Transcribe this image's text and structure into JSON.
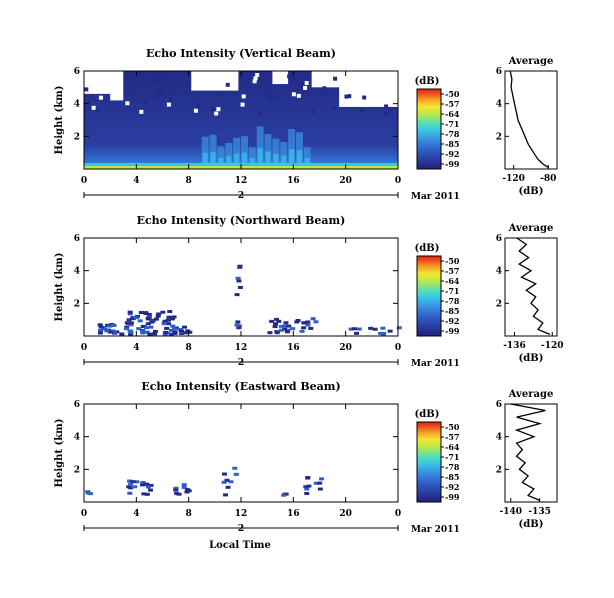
{
  "figure": {
    "x_label": "Local Time",
    "date_tail": "Mar 2011"
  },
  "colorbar": {
    "unit": "(dB)",
    "ticks": [
      "-50",
      "-57",
      "-64",
      "-71",
      "-78",
      "-85",
      "-92",
      "-99"
    ],
    "colors": [
      "#1f1f7a",
      "#2a3ea0",
      "#2f5fc8",
      "#3b8de0",
      "#38c6e8",
      "#5ee0b0",
      "#b6e84a",
      "#f2e633",
      "#f7a628",
      "#f25a1e",
      "#e0201a"
    ]
  },
  "chart_data": [
    {
      "type": "heatmap",
      "title": "Echo Intensity (Vertical Beam)",
      "xlabel": "Local Time",
      "ylabel": "Height (km)",
      "x_ticks": [
        "0",
        "4",
        "8",
        "12",
        "16",
        "20",
        "0"
      ],
      "y_ticks": [
        "2",
        "4",
        "6"
      ],
      "xlim": [
        0,
        24
      ],
      "ylim": [
        0,
        6
      ],
      "day_label": "2",
      "colorbar_range_db": [
        -99,
        -50
      ],
      "profile": {
        "title": "Average",
        "xlabel": "(dB)",
        "x_ticks": [
          "-120",
          "-80"
        ],
        "xlim": [
          -130,
          -70
        ],
        "ylim": [
          0,
          6
        ],
        "y_ticks": [
          "2",
          "4",
          "6"
        ],
        "heights_km": [
          0.1,
          0.3,
          0.6,
          1.0,
          1.5,
          2.0,
          2.5,
          3.0,
          3.5,
          4.0,
          4.5,
          5.0,
          5.5,
          6.0
        ],
        "values_db": [
          -80,
          -86,
          -92,
          -97,
          -103,
          -107,
          -111,
          -115,
          -117,
          -119,
          -121,
          -123,
          -122,
          -124
        ]
      }
    },
    {
      "type": "heatmap",
      "title": "Echo Intensity (Northward Beam)",
      "xlabel": "Local Time",
      "ylabel": "Height (km)",
      "x_ticks": [
        "0",
        "4",
        "8",
        "12",
        "16",
        "20",
        "0"
      ],
      "y_ticks": [
        "2",
        "4",
        "6"
      ],
      "xlim": [
        0,
        24
      ],
      "ylim": [
        0,
        6
      ],
      "day_label": "2",
      "colorbar_range_db": [
        -99,
        -50
      ],
      "profile": {
        "title": "Average",
        "xlabel": "(dB)",
        "x_ticks": [
          "-136",
          "-120"
        ],
        "xlim": [
          -140,
          -118
        ],
        "ylim": [
          0,
          6
        ],
        "y_ticks": [
          "2",
          "4",
          "6"
        ],
        "heights_km": [
          0.1,
          0.4,
          0.8,
          1.2,
          1.6,
          2.0,
          2.4,
          2.8,
          3.2,
          3.6,
          4.0,
          4.4,
          4.8,
          5.2,
          5.6,
          6.0
        ],
        "values_db": [
          -121,
          -126,
          -124,
          -128,
          -126,
          -129,
          -127,
          -131,
          -127,
          -133,
          -129,
          -134,
          -130,
          -134,
          -131,
          -135
        ]
      }
    },
    {
      "type": "heatmap",
      "title": "Echo Intensity (Eastward Beam)",
      "xlabel": "Local Time",
      "ylabel": "Height (km)",
      "x_ticks": [
        "0",
        "4",
        "8",
        "12",
        "16",
        "20",
        "0"
      ],
      "y_ticks": [
        "2",
        "4",
        "6"
      ],
      "xlim": [
        0,
        24
      ],
      "ylim": [
        0,
        6
      ],
      "day_label": "2",
      "colorbar_range_db": [
        -99,
        -50
      ],
      "profile": {
        "title": "Average",
        "xlabel": "(dB)",
        "x_ticks": [
          "-140",
          "-135"
        ],
        "xlim": [
          -141,
          -132
        ],
        "ylim": [
          0,
          6
        ],
        "y_ticks": [
          "2",
          "4",
          "6"
        ],
        "heights_km": [
          0.1,
          0.4,
          0.8,
          1.2,
          1.6,
          2.0,
          2.4,
          2.8,
          3.2,
          3.6,
          4.0,
          4.4,
          4.8,
          5.2,
          5.6,
          6.0
        ],
        "values_db": [
          -135,
          -137,
          -136,
          -138,
          -137,
          -138.5,
          -137.5,
          -139,
          -138,
          -139,
          -136,
          -139,
          -135,
          -139,
          -134,
          -140
        ]
      }
    }
  ]
}
